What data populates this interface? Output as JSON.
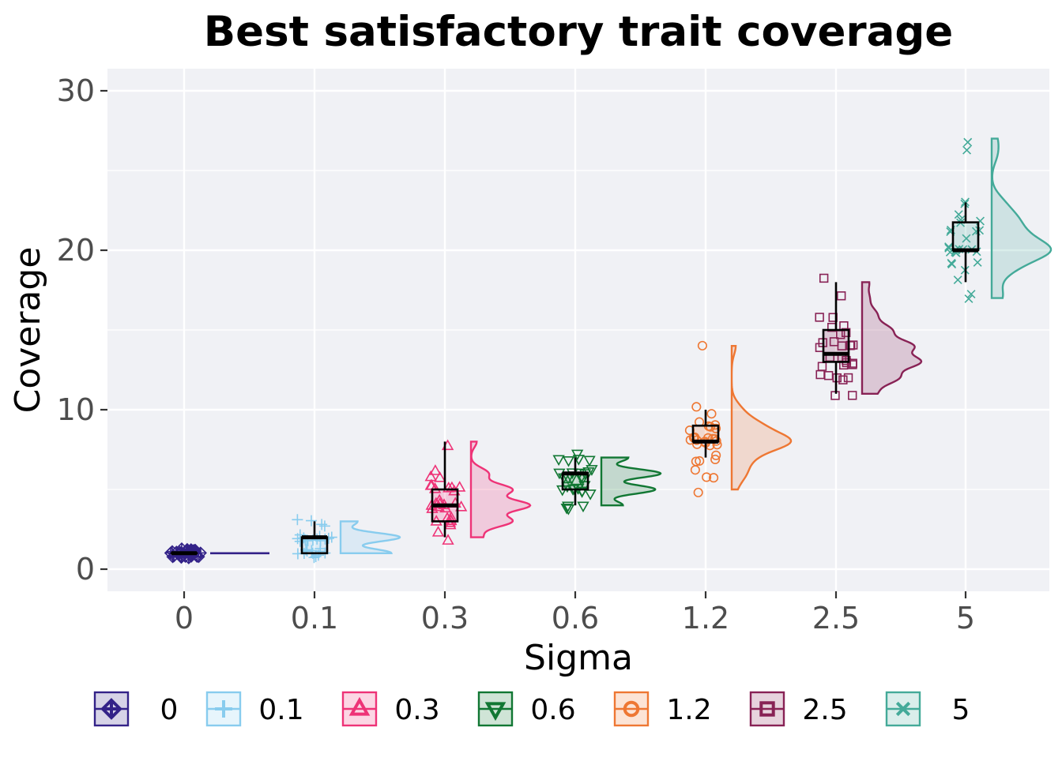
{
  "chart_data": {
    "type": "raincloud",
    "title": "Best satisfactory trait coverage",
    "xlabel": "Sigma",
    "ylabel": "Coverage",
    "ylim": [
      -1.4,
      31.3
    ],
    "yticks": [
      0,
      10,
      20,
      30
    ],
    "categories": [
      "0",
      "0.1",
      "0.3",
      "0.6",
      "1.2",
      "2.5",
      "5"
    ],
    "grid": true,
    "legend_position": "bottom",
    "groups": [
      {
        "name": "0",
        "color": "#332288",
        "marker": "diamond-plus",
        "box": {
          "min": 1,
          "q1": 1,
          "median": 1,
          "q3": 1,
          "max": 1
        },
        "points": [
          1,
          1,
          1,
          1,
          1,
          1,
          1,
          1,
          1,
          1,
          1,
          1,
          1,
          1,
          1,
          1,
          1,
          1,
          1,
          1,
          1,
          1,
          1,
          1,
          1,
          1,
          1,
          1,
          1,
          1
        ]
      },
      {
        "name": "0.1",
        "color": "#88CCEE",
        "marker": "plus",
        "box": {
          "min": 1,
          "q1": 1,
          "median": 2,
          "q3": 2,
          "max": 3
        },
        "points": [
          1,
          1,
          1,
          1,
          1,
          1,
          1,
          1,
          1,
          1,
          1,
          1,
          2,
          2,
          2,
          2,
          2,
          2,
          2,
          2,
          2,
          2,
          2,
          2,
          2,
          2,
          3,
          3,
          3,
          3
        ]
      },
      {
        "name": "0.3",
        "color": "#EE3377",
        "marker": "triangle-up",
        "box": {
          "min": 2,
          "q1": 3,
          "median": 4,
          "q3": 5,
          "max": 8
        },
        "points": [
          2,
          2,
          3,
          3,
          3,
          3,
          3,
          3,
          3,
          4,
          4,
          4,
          4,
          4,
          4,
          4,
          4,
          4,
          4,
          5,
          5,
          5,
          5,
          5,
          5,
          5,
          6,
          6,
          6,
          8
        ]
      },
      {
        "name": "0.6",
        "color": "#117733",
        "marker": "triangle-down",
        "box": {
          "min": 4,
          "q1": 5,
          "median": 6,
          "q3": 6,
          "max": 7
        },
        "points": [
          4,
          4,
          4,
          4,
          5,
          5,
          5,
          5,
          5,
          5,
          5,
          5,
          5,
          5,
          6,
          6,
          6,
          6,
          6,
          6,
          6,
          6,
          6,
          6,
          6,
          7,
          7,
          7,
          7,
          7
        ]
      },
      {
        "name": "1.2",
        "color": "#EE7733",
        "marker": "circle",
        "box": {
          "min": 7,
          "q1": 8,
          "median": 8,
          "q3": 9,
          "max": 10
        },
        "points": [
          5,
          6,
          6,
          6,
          7,
          7,
          7,
          7,
          8,
          8,
          8,
          8,
          8,
          8,
          8,
          8,
          8,
          8,
          8,
          8,
          8,
          9,
          9,
          9,
          9,
          9,
          9,
          10,
          10,
          14
        ]
      },
      {
        "name": "2.5",
        "color": "#882255",
        "marker": "square",
        "box": {
          "min": 11,
          "q1": 13,
          "median": 13.5,
          "q3": 15,
          "max": 18
        },
        "points": [
          11,
          11,
          12,
          12,
          12,
          12,
          12,
          13,
          13,
          13,
          13,
          13,
          13,
          13,
          13,
          14,
          14,
          14,
          14,
          14,
          14,
          14,
          15,
          15,
          15,
          15,
          16,
          16,
          17,
          18
        ]
      },
      {
        "name": "5",
        "color": "#44AA99",
        "marker": "x",
        "box": {
          "min": 18,
          "q1": 20,
          "median": 20,
          "q3": 21.75,
          "max": 23
        },
        "points": [
          17,
          17,
          18,
          19,
          19,
          19,
          19,
          20,
          20,
          20,
          20,
          20,
          20,
          20,
          20,
          20,
          20,
          21,
          21,
          21,
          21,
          21,
          22,
          22,
          22,
          22,
          23,
          23,
          26,
          27
        ]
      }
    ]
  }
}
